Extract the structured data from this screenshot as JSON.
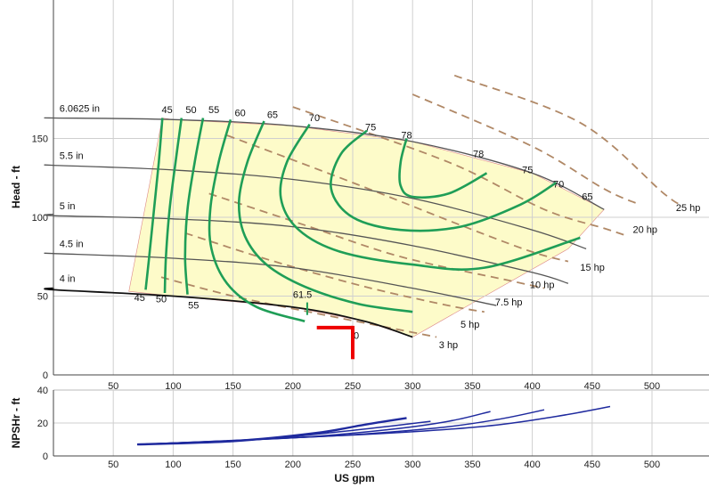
{
  "chart_data": [
    {
      "type": "line",
      "name_role": "pump-performance",
      "title": "",
      "xlabel": "",
      "ylabel": "Head - ft",
      "xlim": [
        0,
        500
      ],
      "ylim": [
        0,
        170
      ],
      "x_ticks": [
        50,
        100,
        150,
        200,
        250,
        300,
        350,
        400,
        450,
        500
      ],
      "y_ticks": [
        0,
        50,
        100,
        150
      ],
      "grid": true,
      "colors": {
        "impeller": "#555555",
        "efficiency": "#1f9e57",
        "power": "#b08866",
        "operating_point": "#ee0000",
        "fill": "#fdfbc9"
      },
      "impeller_curves": [
        {
          "name": "6.0625 in",
          "points": [
            [
              -50,
              163
            ],
            [
              0,
              163
            ],
            [
              100,
              162
            ],
            [
              200,
              158
            ],
            [
              300,
              148
            ],
            [
              400,
              128
            ],
            [
              460,
              105
            ]
          ]
        },
        {
          "name": "5.5 in",
          "points": [
            [
              -50,
              133
            ],
            [
              0,
              133
            ],
            [
              100,
              130
            ],
            [
              200,
              124
            ],
            [
              300,
              112
            ],
            [
              400,
              92
            ],
            [
              445,
              80
            ]
          ]
        },
        {
          "name": "5 in",
          "points": [
            [
              -50,
              102
            ],
            [
              0,
              101
            ],
            [
              100,
              99
            ],
            [
              200,
              94
            ],
            [
              300,
              82
            ],
            [
              400,
              65
            ],
            [
              430,
              58
            ]
          ]
        },
        {
          "name": "4.5 in",
          "points": [
            [
              -50,
              77
            ],
            [
              0,
              77
            ],
            [
              100,
              74
            ],
            [
              200,
              68
            ],
            [
              300,
              55
            ],
            [
              370,
              44
            ]
          ]
        },
        {
          "name": "4 in",
          "points": [
            [
              -50,
              55
            ],
            [
              0,
              54
            ],
            [
              100,
              50
            ],
            [
              200,
              43
            ],
            [
              260,
              34
            ],
            [
              300,
              24
            ]
          ]
        }
      ],
      "efficiency_labels": [
        {
          "text": "45",
          "x": 95,
          "y": 166
        },
        {
          "text": "50",
          "x": 115,
          "y": 166
        },
        {
          "text": "55",
          "x": 134,
          "y": 166
        },
        {
          "text": "60",
          "x": 156,
          "y": 164
        },
        {
          "text": "65",
          "x": 183,
          "y": 163
        },
        {
          "text": "70",
          "x": 218,
          "y": 161
        },
        {
          "text": "75",
          "x": 265,
          "y": 155
        },
        {
          "text": "78",
          "x": 295,
          "y": 150
        },
        {
          "text": "78",
          "x": 355,
          "y": 138
        },
        {
          "text": "75",
          "x": 396,
          "y": 128
        },
        {
          "text": "70",
          "x": 422,
          "y": 119
        },
        {
          "text": "65",
          "x": 446,
          "y": 111
        },
        {
          "text": "45",
          "x": 72,
          "y": 47
        },
        {
          "text": "50",
          "x": 90,
          "y": 46
        },
        {
          "text": "55",
          "x": 117,
          "y": 42
        },
        {
          "text": "61.5",
          "x": 208,
          "y": 49
        },
        {
          "text": "0",
          "x": 253,
          "y": 23
        }
      ],
      "efficiency_curves": [
        {
          "name": "45",
          "points": [
            [
              91,
              163
            ],
            [
              88,
              135
            ],
            [
              84,
              105
            ],
            [
              80,
              75
            ],
            [
              77,
              54
            ]
          ]
        },
        {
          "name": "50",
          "points": [
            [
              107,
              163
            ],
            [
              102,
              135
            ],
            [
              97,
              105
            ],
            [
              94,
              75
            ],
            [
              93,
              52
            ]
          ]
        },
        {
          "name": "55",
          "points": [
            [
              125,
              163
            ],
            [
              118,
              135
            ],
            [
              112,
              105
            ],
            [
              110,
              75
            ],
            [
              112,
              51
            ]
          ]
        },
        {
          "name": "60",
          "points": [
            [
              148,
              162
            ],
            [
              138,
              135
            ],
            [
              131,
              105
            ],
            [
              132,
              80
            ],
            [
              145,
              58
            ],
            [
              170,
              43
            ],
            [
              210,
              34
            ]
          ]
        },
        {
          "name": "65",
          "points": [
            [
              176,
              161
            ],
            [
              162,
              135
            ],
            [
              155,
              110
            ],
            [
              160,
              88
            ],
            [
              178,
              70
            ],
            [
              210,
              56
            ],
            [
              255,
              45
            ],
            [
              300,
              40
            ]
          ]
        },
        {
          "name": "70",
          "points": [
            [
              214,
              159
            ],
            [
              195,
              135
            ],
            [
              190,
              112
            ],
            [
              205,
              92
            ],
            [
              240,
              78
            ],
            [
              300,
              70
            ],
            [
              360,
              68
            ],
            [
              440,
              87
            ]
          ]
        },
        {
          "name": "75",
          "points": [
            [
              262,
              155
            ],
            [
              240,
              140
            ],
            [
              232,
              118
            ],
            [
              250,
              100
            ],
            [
              290,
              92
            ],
            [
              340,
              94
            ],
            [
              390,
              108
            ],
            [
              420,
              122
            ]
          ]
        },
        {
          "name": "78",
          "points": [
            [
              295,
              150
            ],
            [
              290,
              135
            ],
            [
              290,
              120
            ],
            [
              300,
              113
            ],
            [
              330,
              115
            ],
            [
              362,
              128
            ]
          ]
        }
      ],
      "power_curves": [
        {
          "name": "3 hp",
          "points": [
            [
              90,
              62
            ],
            [
              150,
              50
            ],
            [
              220,
              39
            ],
            [
              300,
              27
            ],
            [
              320,
              24
            ]
          ]
        },
        {
          "name": "5 hp",
          "points": [
            [
              110,
              90
            ],
            [
              180,
              73
            ],
            [
              260,
              56
            ],
            [
              330,
              44
            ],
            [
              360,
              40
            ]
          ]
        },
        {
          "name": "7.5 hp",
          "points": [
            [
              130,
              115
            ],
            [
              210,
              95
            ],
            [
              290,
              75
            ],
            [
              380,
              60
            ],
            [
              410,
              55
            ]
          ]
        },
        {
          "name": "10 hp",
          "points": [
            [
              145,
              152
            ],
            [
              250,
              122
            ],
            [
              340,
              95
            ],
            [
              400,
              78
            ],
            [
              430,
              72
            ]
          ]
        },
        {
          "name": "15 hp",
          "points": [
            [
              200,
              170
            ],
            [
              330,
              135
            ],
            [
              410,
              105
            ],
            [
              460,
              93
            ],
            [
              480,
              88
            ]
          ]
        },
        {
          "name": "20 hp",
          "points": [
            [
              300,
              178
            ],
            [
              400,
              145
            ],
            [
              460,
              118
            ],
            [
              490,
              108
            ]
          ]
        },
        {
          "name": "25 hp",
          "points": [
            [
              335,
              190
            ],
            [
              440,
              160
            ],
            [
              510,
              115
            ],
            [
              525,
              108
            ]
          ]
        }
      ],
      "operating_point": {
        "flow": 250,
        "head": 30,
        "horizontal_from": 220,
        "vertical_to": 10
      },
      "series_labels": [
        {
          "text": "6.0625 in",
          "x": 5,
          "y": 167
        },
        {
          "text": "5.5 in",
          "x": 5,
          "y": 137
        },
        {
          "text": "5 in",
          "x": 5,
          "y": 105
        },
        {
          "text": "4.5 in",
          "x": 5,
          "y": 81
        },
        {
          "text": "4 in",
          "x": 5,
          "y": 59
        },
        {
          "text": "25 hp",
          "x": 520,
          "y": 104
        },
        {
          "text": "20 hp",
          "x": 484,
          "y": 90
        },
        {
          "text": "15 hp",
          "x": 440,
          "y": 66
        },
        {
          "text": "10 hp",
          "x": 398,
          "y": 55
        },
        {
          "text": "7.5 hp",
          "x": 369,
          "y": 44
        },
        {
          "text": "5 hp",
          "x": 340,
          "y": 30
        },
        {
          "text": "3 hp",
          "x": 322,
          "y": 17
        }
      ]
    },
    {
      "type": "line",
      "name_role": "npsh",
      "title": "",
      "xlabel": "US gpm",
      "ylabel": "NPSHr - ft",
      "xlim": [
        0,
        500
      ],
      "ylim": [
        0,
        40
      ],
      "x_ticks": [
        50,
        100,
        150,
        200,
        250,
        300,
        350,
        400,
        450,
        500
      ],
      "y_ticks": [
        0,
        20,
        40
      ],
      "grid": true,
      "colors": {
        "npsh": "#1f2a9e"
      },
      "series": [
        {
          "points": [
            [
              70,
              7
            ],
            [
              150,
              9
            ],
            [
              220,
              14
            ],
            [
              260,
              19
            ],
            [
              295,
              23
            ]
          ]
        },
        {
          "points": [
            [
              70,
              7
            ],
            [
              170,
              10
            ],
            [
              230,
              14
            ],
            [
              280,
              18
            ],
            [
              315,
              21
            ]
          ]
        },
        {
          "points": [
            [
              70,
              7
            ],
            [
              200,
              11
            ],
            [
              280,
              16
            ],
            [
              330,
              21
            ],
            [
              365,
              27
            ]
          ]
        },
        {
          "points": [
            [
              70,
              7
            ],
            [
              230,
              12
            ],
            [
              320,
              17
            ],
            [
              370,
              22
            ],
            [
              410,
              28
            ]
          ]
        },
        {
          "points": [
            [
              70,
              7
            ],
            [
              260,
              13
            ],
            [
              360,
              18
            ],
            [
              420,
              24
            ],
            [
              465,
              30
            ]
          ]
        }
      ]
    }
  ]
}
